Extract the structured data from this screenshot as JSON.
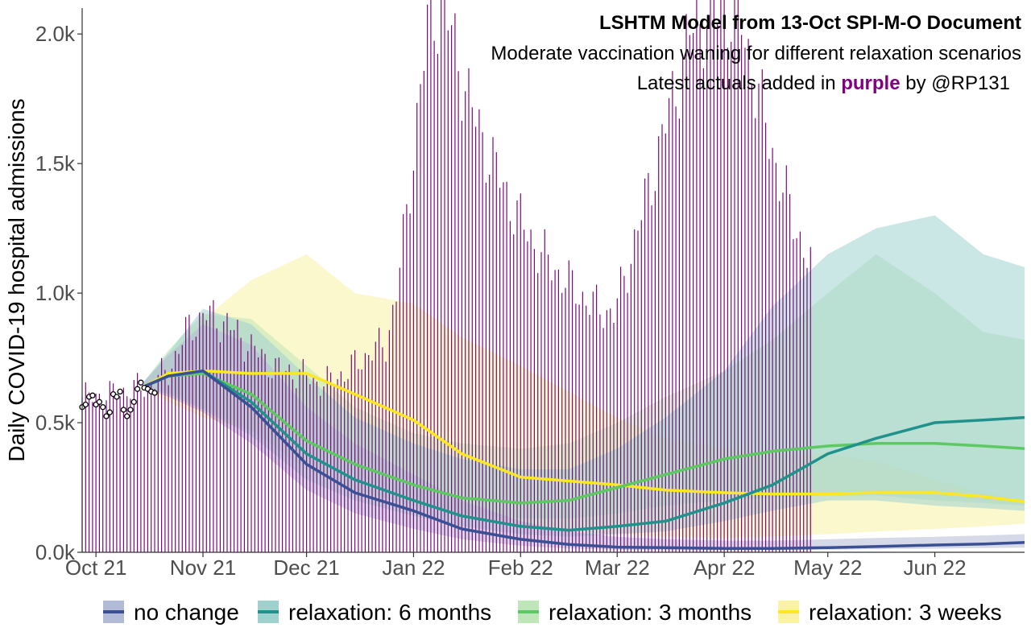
{
  "chart_data": {
    "type": "line",
    "title": "LSHTM Model from 13-Oct SPI-M-O Document",
    "subtitle": "Moderate vaccination waning for different relaxation scenarios",
    "caption": {
      "before": "Latest actuals added in",
      "highlight": "purple",
      "after": "by @RP131"
    },
    "ylabel": "Daily COVID-19 hospital admissions",
    "xlabel": "",
    "x_start": "2021-09-27",
    "x_end": "2022-06-27",
    "ylim": [
      0,
      2100
    ],
    "yticks": [
      {
        "value": 0,
        "label": "0.0k"
      },
      {
        "value": 500,
        "label": "0.5k"
      },
      {
        "value": 1000,
        "label": "1.0k"
      },
      {
        "value": 1500,
        "label": "1.5k"
      },
      {
        "value": 2000,
        "label": "2.0k"
      }
    ],
    "xticks": [
      {
        "date": "2021-10-01",
        "label": "Oct 21"
      },
      {
        "date": "2021-11-01",
        "label": "Nov 21"
      },
      {
        "date": "2021-12-01",
        "label": "Dec 21"
      },
      {
        "date": "2022-01-01",
        "label": "Jan 22"
      },
      {
        "date": "2022-02-01",
        "label": "Feb 22"
      },
      {
        "date": "2022-03-01",
        "label": "Mar 22"
      },
      {
        "date": "2022-04-01",
        "label": "Apr 22"
      },
      {
        "date": "2022-05-01",
        "label": "May 22"
      },
      {
        "date": "2022-06-01",
        "label": "Jun 22"
      }
    ],
    "grid": false,
    "legend_position": "bottom",
    "legend": [
      {
        "key": "no_change",
        "label": "no change",
        "color": "#3b4f94",
        "fill": "#b3bad6"
      },
      {
        "key": "relax_6m",
        "label": "relaxation: 6 months",
        "color": "#21918c",
        "fill": "#9fd2cf"
      },
      {
        "key": "relax_3m",
        "label": "relaxation: 3 months",
        "color": "#5ec962",
        "fill": "#bfe6b8"
      },
      {
        "key": "relax_3w",
        "label": "relaxation: 3 weeks",
        "color": "#fde725",
        "fill": "#faf3a6"
      }
    ],
    "colors": {
      "actuals": "#7a0a7a",
      "highlight": "#800080",
      "points": "#000000"
    },
    "series": [
      {
        "key": "relax_3w",
        "color": "#fde725",
        "points": [
          [
            "2021-10-15",
            640
          ],
          [
            "2021-10-22",
            690
          ],
          [
            "2021-11-01",
            700
          ],
          [
            "2021-11-15",
            690
          ],
          [
            "2021-12-01",
            690
          ],
          [
            "2021-12-15",
            610
          ],
          [
            "2022-01-01",
            510
          ],
          [
            "2022-01-15",
            380
          ],
          [
            "2022-02-01",
            290
          ],
          [
            "2022-02-15",
            275
          ],
          [
            "2022-03-01",
            260
          ],
          [
            "2022-03-15",
            240
          ],
          [
            "2022-04-01",
            230
          ],
          [
            "2022-04-15",
            225
          ],
          [
            "2022-05-01",
            225
          ],
          [
            "2022-05-15",
            230
          ],
          [
            "2022-06-01",
            230
          ],
          [
            "2022-06-15",
            215
          ],
          [
            "2022-06-27",
            195
          ]
        ],
        "band": [
          [
            "2021-10-15",
            630,
            660
          ],
          [
            "2021-10-22",
            580,
            760
          ],
          [
            "2021-11-01",
            520,
            900
          ],
          [
            "2021-11-15",
            470,
            1050
          ],
          [
            "2021-12-01",
            430,
            1150
          ],
          [
            "2021-12-15",
            300,
            1000
          ],
          [
            "2022-01-01",
            220,
            960
          ],
          [
            "2022-01-15",
            140,
            830
          ],
          [
            "2022-02-01",
            100,
            720
          ],
          [
            "2022-02-15",
            80,
            620
          ],
          [
            "2022-03-01",
            70,
            520
          ],
          [
            "2022-03-15",
            60,
            440
          ],
          [
            "2022-04-01",
            55,
            400
          ],
          [
            "2022-04-15",
            60,
            380
          ],
          [
            "2022-05-01",
            70,
            380
          ],
          [
            "2022-05-15",
            80,
            350
          ],
          [
            "2022-06-01",
            90,
            280
          ],
          [
            "2022-06-15",
            100,
            230
          ],
          [
            "2022-06-27",
            110,
            200
          ]
        ]
      },
      {
        "key": "relax_3m",
        "color": "#5ec962",
        "points": [
          [
            "2021-10-15",
            640
          ],
          [
            "2021-10-22",
            680
          ],
          [
            "2021-11-01",
            690
          ],
          [
            "2021-11-15",
            610
          ],
          [
            "2021-12-01",
            430
          ],
          [
            "2021-12-15",
            340
          ],
          [
            "2022-01-01",
            260
          ],
          [
            "2022-01-15",
            210
          ],
          [
            "2022-02-01",
            190
          ],
          [
            "2022-02-15",
            200
          ],
          [
            "2022-03-01",
            250
          ],
          [
            "2022-03-15",
            300
          ],
          [
            "2022-04-01",
            360
          ],
          [
            "2022-04-15",
            390
          ],
          [
            "2022-05-01",
            410
          ],
          [
            "2022-05-15",
            420
          ],
          [
            "2022-06-01",
            420
          ],
          [
            "2022-06-15",
            410
          ],
          [
            "2022-06-27",
            400
          ]
        ],
        "band": [
          [
            "2021-10-15",
            630,
            660
          ],
          [
            "2021-10-22",
            620,
            780
          ],
          [
            "2021-11-01",
            560,
            920
          ],
          [
            "2021-11-15",
            470,
            900
          ],
          [
            "2021-12-01",
            320,
            720
          ],
          [
            "2021-12-15",
            240,
            560
          ],
          [
            "2022-01-01",
            180,
            460
          ],
          [
            "2022-01-15",
            150,
            420
          ],
          [
            "2022-02-01",
            130,
            400
          ],
          [
            "2022-02-15",
            130,
            420
          ],
          [
            "2022-03-01",
            150,
            500
          ],
          [
            "2022-03-15",
            180,
            600
          ],
          [
            "2022-04-01",
            200,
            700
          ],
          [
            "2022-04-15",
            210,
            820
          ],
          [
            "2022-05-01",
            220,
            1000
          ],
          [
            "2022-05-15",
            220,
            1150
          ],
          [
            "2022-06-01",
            200,
            1000
          ],
          [
            "2022-06-15",
            190,
            850
          ],
          [
            "2022-06-27",
            180,
            820
          ]
        ]
      },
      {
        "key": "relax_6m",
        "color": "#21918c",
        "points": [
          [
            "2021-10-15",
            640
          ],
          [
            "2021-10-22",
            680
          ],
          [
            "2021-11-01",
            700
          ],
          [
            "2021-11-15",
            580
          ],
          [
            "2021-12-01",
            380
          ],
          [
            "2021-12-15",
            280
          ],
          [
            "2022-01-01",
            200
          ],
          [
            "2022-01-15",
            140
          ],
          [
            "2022-02-01",
            100
          ],
          [
            "2022-02-15",
            85
          ],
          [
            "2022-03-01",
            100
          ],
          [
            "2022-03-15",
            120
          ],
          [
            "2022-04-01",
            190
          ],
          [
            "2022-04-15",
            260
          ],
          [
            "2022-05-01",
            380
          ],
          [
            "2022-05-15",
            440
          ],
          [
            "2022-06-01",
            500
          ],
          [
            "2022-06-15",
            510
          ],
          [
            "2022-06-27",
            520
          ]
        ],
        "band": [
          [
            "2021-10-15",
            630,
            660
          ],
          [
            "2021-10-22",
            610,
            770
          ],
          [
            "2021-11-01",
            550,
            940
          ],
          [
            "2021-11-15",
            450,
            880
          ],
          [
            "2021-12-01",
            280,
            680
          ],
          [
            "2021-12-15",
            200,
            520
          ],
          [
            "2022-01-01",
            140,
            420
          ],
          [
            "2022-01-15",
            100,
            360
          ],
          [
            "2022-02-01",
            70,
            320
          ],
          [
            "2022-02-15",
            60,
            320
          ],
          [
            "2022-03-01",
            70,
            400
          ],
          [
            "2022-03-15",
            80,
            520
          ],
          [
            "2022-04-01",
            120,
            700
          ],
          [
            "2022-04-15",
            160,
            950
          ],
          [
            "2022-05-01",
            200,
            1150
          ],
          [
            "2022-05-15",
            200,
            1250
          ],
          [
            "2022-06-01",
            180,
            1300
          ],
          [
            "2022-06-15",
            170,
            1150
          ],
          [
            "2022-06-27",
            160,
            1100
          ]
        ]
      },
      {
        "key": "no_change",
        "color": "#3b4f94",
        "points": [
          [
            "2021-10-15",
            640
          ],
          [
            "2021-10-22",
            680
          ],
          [
            "2021-11-01",
            700
          ],
          [
            "2021-11-15",
            560
          ],
          [
            "2021-12-01",
            340
          ],
          [
            "2021-12-15",
            230
          ],
          [
            "2022-01-01",
            160
          ],
          [
            "2022-01-15",
            90
          ],
          [
            "2022-02-01",
            50
          ],
          [
            "2022-02-15",
            30
          ],
          [
            "2022-03-01",
            20
          ],
          [
            "2022-03-15",
            18
          ],
          [
            "2022-04-01",
            15
          ],
          [
            "2022-04-15",
            15
          ],
          [
            "2022-05-01",
            18
          ],
          [
            "2022-05-15",
            22
          ],
          [
            "2022-06-01",
            28
          ],
          [
            "2022-06-15",
            32
          ],
          [
            "2022-06-27",
            38
          ]
        ],
        "band": [
          [
            "2021-10-15",
            630,
            660
          ],
          [
            "2021-10-22",
            600,
            760
          ],
          [
            "2021-11-01",
            540,
            880
          ],
          [
            "2021-11-15",
            420,
            800
          ],
          [
            "2021-12-01",
            240,
            560
          ],
          [
            "2021-12-15",
            150,
            420
          ],
          [
            "2022-01-01",
            90,
            300
          ],
          [
            "2022-01-15",
            50,
            200
          ],
          [
            "2022-02-01",
            25,
            120
          ],
          [
            "2022-02-15",
            15,
            80
          ],
          [
            "2022-03-01",
            10,
            60
          ],
          [
            "2022-03-15",
            8,
            50
          ],
          [
            "2022-04-01",
            8,
            45
          ],
          [
            "2022-04-15",
            8,
            45
          ],
          [
            "2022-05-01",
            10,
            50
          ],
          [
            "2022-05-15",
            12,
            55
          ],
          [
            "2022-06-01",
            14,
            60
          ],
          [
            "2022-06-15",
            16,
            65
          ],
          [
            "2022-06-27",
            18,
            70
          ]
        ]
      }
    ],
    "actuals_bars": {
      "start": "2021-09-27",
      "end": "2022-04-26",
      "knots": [
        [
          "2021-09-27",
          600
        ],
        [
          "2021-10-05",
          610
        ],
        [
          "2021-10-15",
          640
        ],
        [
          "2021-10-22",
          700
        ],
        [
          "2021-10-28",
          870
        ],
        [
          "2021-11-02",
          920
        ],
        [
          "2021-11-08",
          880
        ],
        [
          "2021-11-15",
          790
        ],
        [
          "2021-11-22",
          710
        ],
        [
          "2021-11-29",
          690
        ],
        [
          "2021-12-06",
          650
        ],
        [
          "2021-12-13",
          700
        ],
        [
          "2021-12-20",
          780
        ],
        [
          "2021-12-24",
          800
        ],
        [
          "2021-12-27",
          1000
        ],
        [
          "2021-12-30",
          1300
        ],
        [
          "2022-01-03",
          1800
        ],
        [
          "2022-01-06",
          2100
        ],
        [
          "2022-01-10",
          2100
        ],
        [
          "2022-01-14",
          1900
        ],
        [
          "2022-01-18",
          1700
        ],
        [
          "2022-01-24",
          1500
        ],
        [
          "2022-01-31",
          1300
        ],
        [
          "2022-02-07",
          1150
        ],
        [
          "2022-02-14",
          1050
        ],
        [
          "2022-02-21",
          960
        ],
        [
          "2022-02-28",
          920
        ],
        [
          "2022-03-04",
          1100
        ],
        [
          "2022-03-08",
          1300
        ],
        [
          "2022-03-13",
          1550
        ],
        [
          "2022-03-18",
          1800
        ],
        [
          "2022-03-22",
          2000
        ],
        [
          "2022-03-28",
          2100
        ],
        [
          "2022-04-05",
          2100
        ],
        [
          "2022-04-12",
          1700
        ],
        [
          "2022-04-18",
          1400
        ],
        [
          "2022-04-26",
          1100
        ]
      ]
    },
    "actuals_points": [
      [
        "2021-09-27",
        560
      ],
      [
        "2021-09-28",
        570
      ],
      [
        "2021-09-29",
        600
      ],
      [
        "2021-09-30",
        605
      ],
      [
        "2021-10-01",
        570
      ],
      [
        "2021-10-02",
        580
      ],
      [
        "2021-10-03",
        560
      ],
      [
        "2021-10-04",
        525
      ],
      [
        "2021-10-05",
        540
      ],
      [
        "2021-10-06",
        610
      ],
      [
        "2021-10-07",
        600
      ],
      [
        "2021-10-08",
        620
      ],
      [
        "2021-10-09",
        550
      ],
      [
        "2021-10-10",
        525
      ],
      [
        "2021-10-11",
        550
      ],
      [
        "2021-10-12",
        580
      ],
      [
        "2021-10-13",
        630
      ],
      [
        "2021-10-14",
        655
      ],
      [
        "2021-10-15",
        635
      ],
      [
        "2021-10-16",
        630
      ],
      [
        "2021-10-17",
        620
      ],
      [
        "2021-10-18",
        615
      ]
    ]
  }
}
